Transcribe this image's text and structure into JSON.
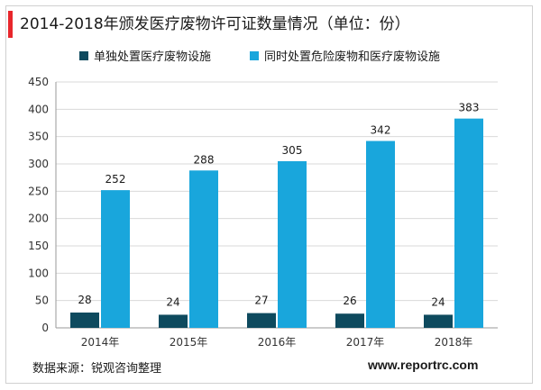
{
  "title": "2014-2018年颁发医疗废物许可证数量情况（单位：份）",
  "legend": [
    {
      "label": "单独处置医疗废物设施",
      "color": "#0e4a5e"
    },
    {
      "label": "同时处置危险废物和医疗废物设施",
      "color": "#19a6dc"
    }
  ],
  "source": "数据来源：锐观咨询整理",
  "website": "www.reportrc.com",
  "chart_data": {
    "type": "bar",
    "categories": [
      "2014年",
      "2015年",
      "2016年",
      "2017年",
      "2018年"
    ],
    "series": [
      {
        "name": "单独处置医疗废物设施",
        "values": [
          28,
          24,
          27,
          26,
          24
        ],
        "color": "#0e4a5e"
      },
      {
        "name": "同时处置危险废物和医疗废物设施",
        "values": [
          252,
          288,
          305,
          342,
          383
        ],
        "color": "#19a6dc"
      }
    ],
    "ylim": [
      0,
      450
    ],
    "yticks": [
      0,
      50,
      100,
      150,
      200,
      250,
      300,
      350,
      400,
      450
    ],
    "grid": true,
    "legend_position": "top"
  }
}
